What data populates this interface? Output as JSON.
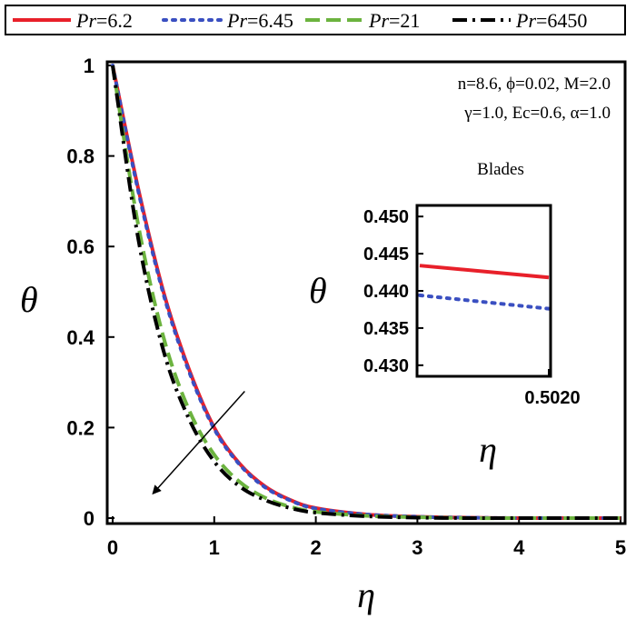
{
  "chart_data": {
    "type": "line",
    "xlabel": "η",
    "ylabel": "θ",
    "xlim": [
      0,
      5
    ],
    "ylim": [
      0,
      1
    ],
    "x_ticks": [
      "0",
      "1",
      "2",
      "3",
      "4",
      "5"
    ],
    "y_ticks": [
      "0",
      "0.2",
      "0.4",
      "0.6",
      "0.8",
      "1"
    ],
    "legend_position": "top",
    "series": [
      {
        "name": "Pr=6.2",
        "legend_prefix": "Pr",
        "legend_value": "=6.2",
        "color": "#e8202a",
        "style": "solid",
        "x": [
          0,
          0.25,
          0.5,
          0.75,
          1.0,
          1.25,
          1.5,
          1.75,
          2.0,
          2.5,
          3.0,
          3.5,
          4.0,
          4.5,
          5.0
        ],
        "y": [
          1.0,
          0.73,
          0.5,
          0.33,
          0.2,
          0.12,
          0.07,
          0.04,
          0.022,
          0.008,
          0.003,
          0.001,
          0.0,
          0.0,
          0.0
        ]
      },
      {
        "name": "Pr=6.45",
        "legend_prefix": "Pr",
        "legend_value": "=6.45",
        "color": "#3a4fc1",
        "style": "dotted",
        "x": [
          0,
          0.25,
          0.5,
          0.75,
          1.0,
          1.25,
          1.5,
          1.75,
          2.0,
          2.5,
          3.0,
          3.5,
          4.0,
          4.5,
          5.0
        ],
        "y": [
          1.0,
          0.725,
          0.495,
          0.325,
          0.197,
          0.118,
          0.068,
          0.039,
          0.021,
          0.008,
          0.003,
          0.001,
          0.0,
          0.0,
          0.0
        ]
      },
      {
        "name": "Pr=21",
        "legend_prefix": "Pr",
        "legend_value": "=21",
        "color": "#6cb33f",
        "style": "dashed",
        "x": [
          0,
          0.25,
          0.5,
          0.75,
          1.0,
          1.25,
          1.5,
          1.75,
          2.0,
          2.5,
          3.0,
          3.5,
          4.0,
          4.5,
          5.0
        ],
        "y": [
          1.0,
          0.65,
          0.4,
          0.24,
          0.14,
          0.08,
          0.045,
          0.025,
          0.014,
          0.005,
          0.002,
          0.0,
          0.0,
          0.0,
          0.0
        ]
      },
      {
        "name": "Pr=6450",
        "legend_prefix": "Pr",
        "legend_value": "=6450",
        "color": "#000000",
        "style": "dashdot",
        "x": [
          0,
          0.25,
          0.5,
          0.75,
          1.0,
          1.25,
          1.5,
          1.75,
          2.0,
          2.5,
          3.0,
          3.5,
          4.0,
          4.5,
          5.0
        ],
        "y": [
          1.0,
          0.62,
          0.37,
          0.22,
          0.125,
          0.07,
          0.04,
          0.022,
          0.012,
          0.004,
          0.001,
          0.0,
          0.0,
          0.0,
          0.0
        ]
      }
    ],
    "annotation_lines": [
      "n=8.6, ϕ=0.02, M=2.0",
      "γ=1.0, Ec=0.6, α=1.0"
    ],
    "arrow": {
      "from": [
        1.3,
        0.28
      ],
      "to": [
        0.4,
        0.055
      ]
    },
    "inset": {
      "title": "Blades",
      "xlabel": "η",
      "ylabel": "θ",
      "xlim": [
        0.5012,
        0.502
      ],
      "ylim": [
        0.429,
        0.451
      ],
      "x_ticks": [
        "0.5020"
      ],
      "y_ticks": [
        "0.430",
        "0.435",
        "0.440",
        "0.445",
        "0.450"
      ],
      "series": [
        {
          "name": "Pr=6.2",
          "x": [
            0.5012,
            0.502
          ],
          "y": [
            0.4434,
            0.4418
          ]
        },
        {
          "name": "Pr=6.45",
          "x": [
            0.5012,
            0.502
          ],
          "y": [
            0.4394,
            0.4376
          ]
        }
      ]
    }
  }
}
